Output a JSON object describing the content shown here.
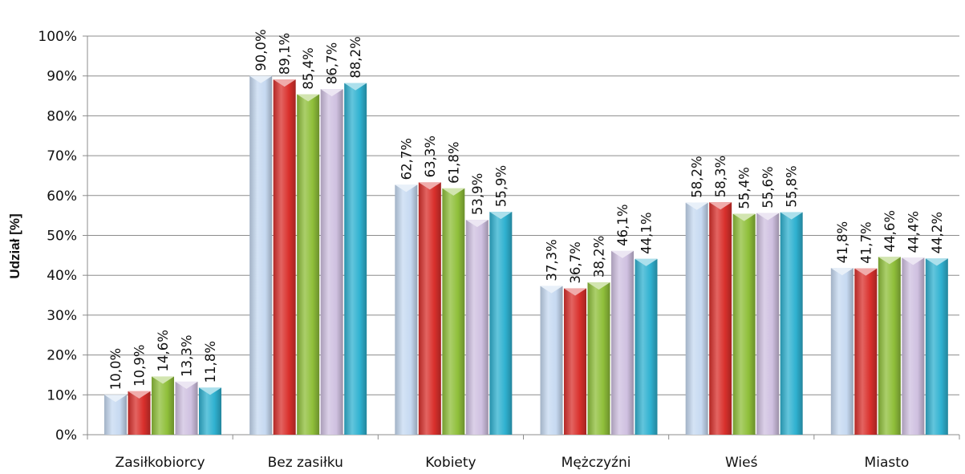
{
  "chart_data": {
    "type": "bar",
    "title": "",
    "xlabel": "",
    "ylabel": "Udział [%]",
    "ylim": [
      0,
      100
    ],
    "yticks": [
      "0%",
      "10%",
      "20%",
      "30%",
      "40%",
      "50%",
      "60%",
      "70%",
      "80%",
      "90%",
      "100%"
    ],
    "grid": true,
    "legend": "none",
    "categories": [
      "Zasiłkobiorcy",
      "Bez zasiłku",
      "Kobiety",
      "Mężczyźni",
      "Wieś",
      "Miasto"
    ],
    "series": [
      {
        "values": [
          10.0,
          90.0,
          62.7,
          37.3,
          58.2,
          41.8
        ],
        "labels": [
          "10,0%",
          "90,0%",
          "62,7%",
          "37,3%",
          "58,2%",
          "41,8%"
        ],
        "color": "#c6d9f1"
      },
      {
        "values": [
          10.9,
          89.1,
          63.3,
          36.7,
          58.3,
          41.7
        ],
        "labels": [
          "10,9%",
          "89,1%",
          "63,3%",
          "36,7%",
          "58,3%",
          "41,7%"
        ],
        "color": "#d9302c"
      },
      {
        "values": [
          14.6,
          85.4,
          61.8,
          38.2,
          55.4,
          44.6
        ],
        "labels": [
          "14,6%",
          "85,4%",
          "61,8%",
          "38,2%",
          "55,4%",
          "44,6%"
        ],
        "color": "#8fbf3a"
      },
      {
        "values": [
          13.3,
          86.7,
          53.9,
          46.1,
          55.6,
          44.4
        ],
        "labels": [
          "13,3%",
          "86,7%",
          "53,9%",
          "46,1%",
          "55,6%",
          "44,4%"
        ],
        "color": "#cfc0e0"
      },
      {
        "values": [
          11.8,
          88.2,
          55.9,
          44.1,
          55.8,
          44.2
        ],
        "labels": [
          "11,8%",
          "88,2%",
          "55,9%",
          "44,1%",
          "55,8%",
          "44,2%"
        ],
        "color": "#2fb1d0"
      }
    ]
  }
}
